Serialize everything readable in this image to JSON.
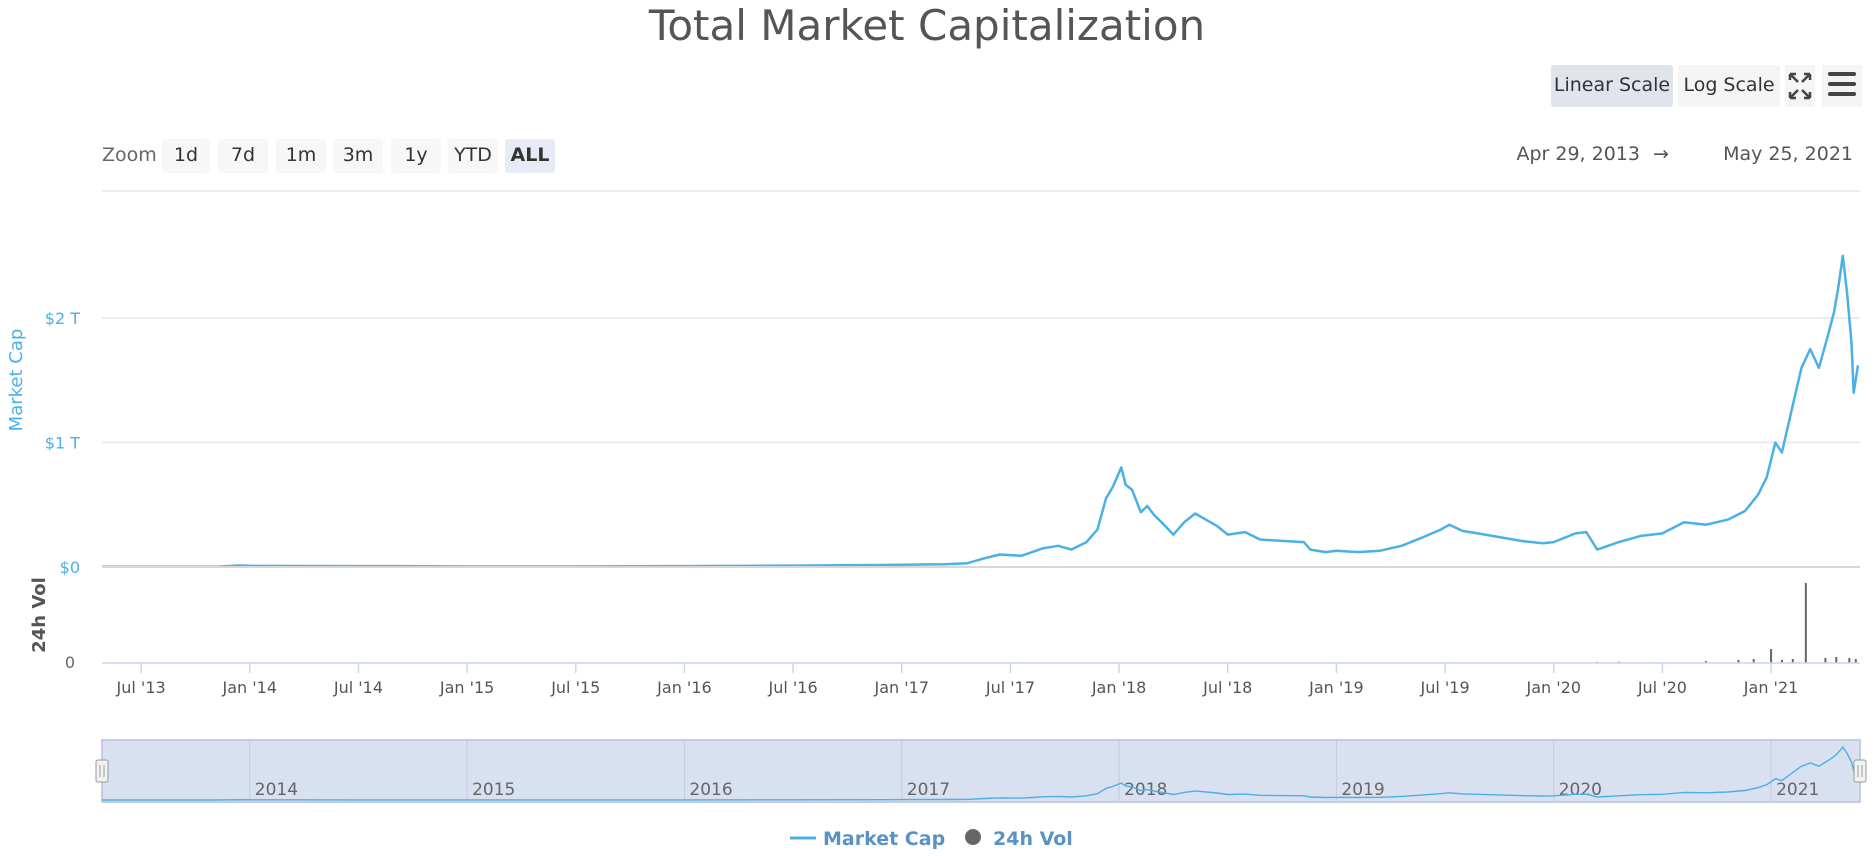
{
  "title": "Total Market Capitalization",
  "toolbar": {
    "linear_label": "Linear Scale",
    "log_label": "Log Scale"
  },
  "zoom": {
    "label": "Zoom",
    "buttons": [
      "1d",
      "7d",
      "1m",
      "3m",
      "1y",
      "YTD",
      "ALL"
    ],
    "active": "ALL"
  },
  "range": {
    "from": "Apr 29, 2013",
    "arrow": "→",
    "to": "May 25, 2021"
  },
  "chart_data": {
    "type": "line",
    "title": "Total Market Capitalization",
    "x_range": [
      2013.32,
      2021.4
    ],
    "ylabel": "Market Cap",
    "y_unit": "USD trillions",
    "ylim": [
      0,
      2.6
    ],
    "y_ticks": [
      {
        "value": 0,
        "label": "$0"
      },
      {
        "value": 1,
        "label": "$1 T"
      },
      {
        "value": 2,
        "label": "$2 T"
      }
    ],
    "x_ticks": [
      {
        "value": 2013.5,
        "label": "Jul '13"
      },
      {
        "value": 2014.0,
        "label": "Jan '14"
      },
      {
        "value": 2014.5,
        "label": "Jul '14"
      },
      {
        "value": 2015.0,
        "label": "Jan '15"
      },
      {
        "value": 2015.5,
        "label": "Jul '15"
      },
      {
        "value": 2016.0,
        "label": "Jan '16"
      },
      {
        "value": 2016.5,
        "label": "Jul '16"
      },
      {
        "value": 2017.0,
        "label": "Jan '17"
      },
      {
        "value": 2017.5,
        "label": "Jul '17"
      },
      {
        "value": 2018.0,
        "label": "Jan '18"
      },
      {
        "value": 2018.5,
        "label": "Jul '18"
      },
      {
        "value": 2019.0,
        "label": "Jan '19"
      },
      {
        "value": 2019.5,
        "label": "Jul '19"
      },
      {
        "value": 2020.0,
        "label": "Jan '20"
      },
      {
        "value": 2020.5,
        "label": "Jul '20"
      },
      {
        "value": 2021.0,
        "label": "Jan '21"
      }
    ],
    "series": [
      {
        "name": "Market Cap",
        "color": "#4bb0e6",
        "points": [
          [
            2013.32,
            0.0015
          ],
          [
            2013.6,
            0.0013
          ],
          [
            2013.85,
            0.002
          ],
          [
            2013.95,
            0.012
          ],
          [
            2014.0,
            0.01
          ],
          [
            2014.2,
            0.008
          ],
          [
            2014.5,
            0.007
          ],
          [
            2014.8,
            0.006
          ],
          [
            2015.0,
            0.004
          ],
          [
            2015.5,
            0.004
          ],
          [
            2016.0,
            0.007
          ],
          [
            2016.5,
            0.011
          ],
          [
            2016.9,
            0.016
          ],
          [
            2017.0,
            0.018
          ],
          [
            2017.2,
            0.022
          ],
          [
            2017.3,
            0.03
          ],
          [
            2017.38,
            0.07
          ],
          [
            2017.45,
            0.1
          ],
          [
            2017.55,
            0.09
          ],
          [
            2017.6,
            0.12
          ],
          [
            2017.65,
            0.15
          ],
          [
            2017.72,
            0.17
          ],
          [
            2017.78,
            0.14
          ],
          [
            2017.85,
            0.2
          ],
          [
            2017.9,
            0.3
          ],
          [
            2017.94,
            0.55
          ],
          [
            2017.97,
            0.64
          ],
          [
            2018.0,
            0.76
          ],
          [
            2018.01,
            0.8
          ],
          [
            2018.03,
            0.66
          ],
          [
            2018.06,
            0.62
          ],
          [
            2018.1,
            0.44
          ],
          [
            2018.13,
            0.49
          ],
          [
            2018.16,
            0.42
          ],
          [
            2018.2,
            0.35
          ],
          [
            2018.25,
            0.26
          ],
          [
            2018.3,
            0.36
          ],
          [
            2018.35,
            0.43
          ],
          [
            2018.4,
            0.38
          ],
          [
            2018.45,
            0.33
          ],
          [
            2018.5,
            0.26
          ],
          [
            2018.58,
            0.28
          ],
          [
            2018.65,
            0.22
          ],
          [
            2018.75,
            0.21
          ],
          [
            2018.85,
            0.2
          ],
          [
            2018.88,
            0.14
          ],
          [
            2018.95,
            0.12
          ],
          [
            2019.0,
            0.13
          ],
          [
            2019.1,
            0.12
          ],
          [
            2019.2,
            0.13
          ],
          [
            2019.3,
            0.17
          ],
          [
            2019.4,
            0.24
          ],
          [
            2019.48,
            0.3
          ],
          [
            2019.52,
            0.34
          ],
          [
            2019.58,
            0.29
          ],
          [
            2019.65,
            0.27
          ],
          [
            2019.75,
            0.24
          ],
          [
            2019.85,
            0.21
          ],
          [
            2019.95,
            0.19
          ],
          [
            2020.0,
            0.2
          ],
          [
            2020.1,
            0.27
          ],
          [
            2020.15,
            0.28
          ],
          [
            2020.2,
            0.14
          ],
          [
            2020.3,
            0.2
          ],
          [
            2020.4,
            0.25
          ],
          [
            2020.5,
            0.27
          ],
          [
            2020.6,
            0.36
          ],
          [
            2020.7,
            0.34
          ],
          [
            2020.8,
            0.38
          ],
          [
            2020.88,
            0.45
          ],
          [
            2020.94,
            0.58
          ],
          [
            2020.98,
            0.72
          ],
          [
            2021.02,
            1.0
          ],
          [
            2021.05,
            0.92
          ],
          [
            2021.08,
            1.15
          ],
          [
            2021.12,
            1.45
          ],
          [
            2021.14,
            1.6
          ],
          [
            2021.18,
            1.75
          ],
          [
            2021.22,
            1.6
          ],
          [
            2021.26,
            1.85
          ],
          [
            2021.29,
            2.05
          ],
          [
            2021.31,
            2.25
          ],
          [
            2021.33,
            2.5
          ],
          [
            2021.35,
            2.2
          ],
          [
            2021.37,
            1.8
          ],
          [
            2021.38,
            1.4
          ],
          [
            2021.4,
            1.62
          ]
        ]
      },
      {
        "name": "24h Vol",
        "color": "#666666",
        "ylabel": "24h Vol",
        "vol_ticks": [
          {
            "value": 0,
            "label": "0"
          }
        ],
        "points": [
          [
            2020.2,
            0.01
          ],
          [
            2020.3,
            0.012
          ],
          [
            2020.7,
            0.02
          ],
          [
            2020.85,
            0.03
          ],
          [
            2020.92,
            0.04
          ],
          [
            2021.0,
            0.14
          ],
          [
            2021.05,
            0.03
          ],
          [
            2021.1,
            0.04
          ],
          [
            2021.16,
            0.8
          ],
          [
            2021.25,
            0.05
          ],
          [
            2021.3,
            0.06
          ],
          [
            2021.36,
            0.05
          ],
          [
            2021.39,
            0.04
          ]
        ]
      }
    ],
    "navigator_labels": [
      "2014",
      "2015",
      "2016",
      "2017",
      "2018",
      "2019",
      "2020",
      "2021"
    ],
    "legend": [
      "Market Cap",
      "24h Vol"
    ]
  }
}
